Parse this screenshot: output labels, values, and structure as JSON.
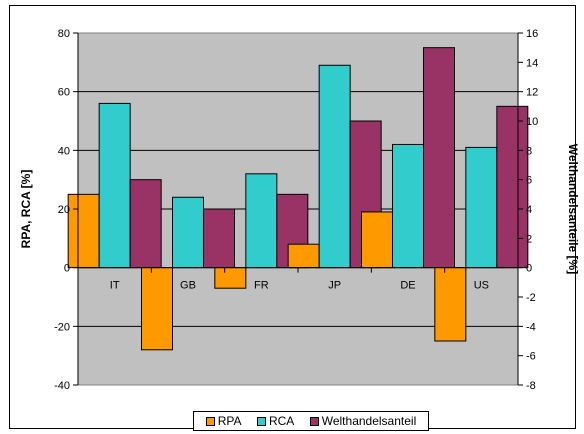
{
  "chart_data": {
    "type": "bar",
    "categories": [
      "IT",
      "GB",
      "FR",
      "JP",
      "DE",
      "US"
    ],
    "series": [
      {
        "name": "RPA",
        "axis": "left",
        "color": "#FF9900",
        "values": [
          25,
          -28,
          -7,
          8,
          19,
          -25
        ]
      },
      {
        "name": "RCA",
        "axis": "left",
        "color": "#33CCCC",
        "values": [
          56,
          24,
          32,
          69,
          42,
          41
        ]
      },
      {
        "name": "Welthandelsanteil",
        "axis": "right",
        "color": "#993366",
        "values": [
          6,
          4,
          5,
          10,
          15,
          11
        ]
      }
    ],
    "ylabel": "RPA, RCA [%]",
    "y2label": "Welthandelsanteile [%]",
    "ylim": [
      -40,
      80
    ],
    "yticks": [
      "80",
      "60",
      "40",
      "20",
      "0",
      "-20",
      "-40"
    ],
    "y2lim": [
      -8,
      16
    ],
    "y2ticks": [
      "16",
      "14",
      "12",
      "10",
      "8",
      "6",
      "4",
      "2",
      "0",
      "-2",
      "-4",
      "-6",
      "-8"
    ],
    "plot_background": "#C0C0C0",
    "grid": true,
    "legend_position": "bottom"
  }
}
